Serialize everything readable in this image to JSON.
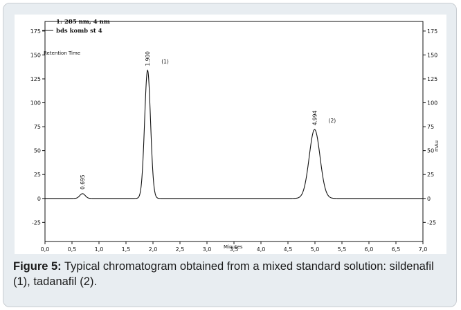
{
  "chart_data": {
    "type": "line",
    "legend_lines": [
      "1: 285 nm, 4 nm",
      "bds komb st 4"
    ],
    "annotation": "Retention Time",
    "xlabel": "Minutes",
    "ylabel_right": "mAu",
    "xlim": [
      0.0,
      7.0
    ],
    "ylim": [
      -45,
      185
    ],
    "x_ticks": [
      "0,0",
      "0,5",
      "1,0",
      "1,5",
      "2,0",
      "2,5",
      "3,0",
      "3,5",
      "4,0",
      "4,5",
      "5,0",
      "5,5",
      "6,0",
      "6,5",
      "7,0"
    ],
    "y_ticks": [
      -25,
      0,
      25,
      50,
      75,
      100,
      125,
      150,
      175
    ],
    "y_ticks_left_labels": [
      "-25",
      "0",
      "25",
      "50",
      "75",
      "100",
      "125",
      "150",
      "175"
    ],
    "y_ticks_right_labels": [
      "-25",
      "0",
      "25",
      "50",
      "75",
      "100",
      "125",
      "150",
      "175"
    ],
    "peaks": [
      {
        "retention_time": 0.695,
        "height": 5,
        "width": 0.05,
        "rt_label": "0.695",
        "name_label": ""
      },
      {
        "retention_time": 1.9,
        "height": 134,
        "width": 0.055,
        "rt_label": "1.900",
        "name_label": "(1)"
      },
      {
        "retention_time": 4.994,
        "height": 72,
        "width": 0.1,
        "rt_label": "4.994",
        "name_label": "(2)"
      }
    ],
    "grid": false,
    "legend_position": "top-left"
  },
  "caption": {
    "label": "Figure 5:",
    "text": " Typical chromatogram obtained from a mixed standard solution: sildenafil (1), tadanafil (2)."
  }
}
